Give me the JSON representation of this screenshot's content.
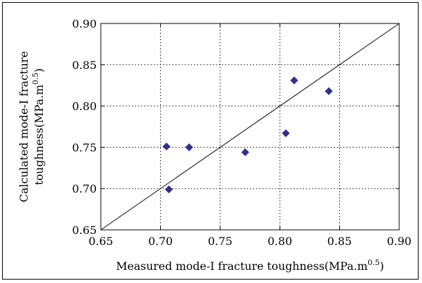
{
  "chart_data": {
    "type": "scatter",
    "title": "",
    "xlabel": {
      "text": "Measured mode-I fracture toughness(MPa.m",
      "sup": "0.5",
      "close": ")"
    },
    "ylabel_line1": "Calculated mode-I fracture",
    "ylabel_line2": {
      "text": "toughness(MPa.m",
      "sup": "0.5",
      "close": ")"
    },
    "xlim": [
      0.65,
      0.9
    ],
    "ylim": [
      0.65,
      0.9
    ],
    "xticks": [
      "0.65",
      "0.70",
      "0.75",
      "0.80",
      "0.85",
      "0.90"
    ],
    "yticks": [
      "0.65",
      "0.70",
      "0.75",
      "0.80",
      "0.85",
      "0.90"
    ],
    "grid": true,
    "reference_line": {
      "from": [
        0.65,
        0.65
      ],
      "to": [
        0.9,
        0.9
      ]
    },
    "series": [
      {
        "marker": "diamond",
        "color": "#2e3192",
        "points": [
          {
            "x": 0.705,
            "y": 0.751
          },
          {
            "x": 0.707,
            "y": 0.699
          },
          {
            "x": 0.724,
            "y": 0.75
          },
          {
            "x": 0.771,
            "y": 0.744
          },
          {
            "x": 0.805,
            "y": 0.767
          },
          {
            "x": 0.812,
            "y": 0.831
          },
          {
            "x": 0.841,
            "y": 0.818
          }
        ]
      }
    ]
  }
}
